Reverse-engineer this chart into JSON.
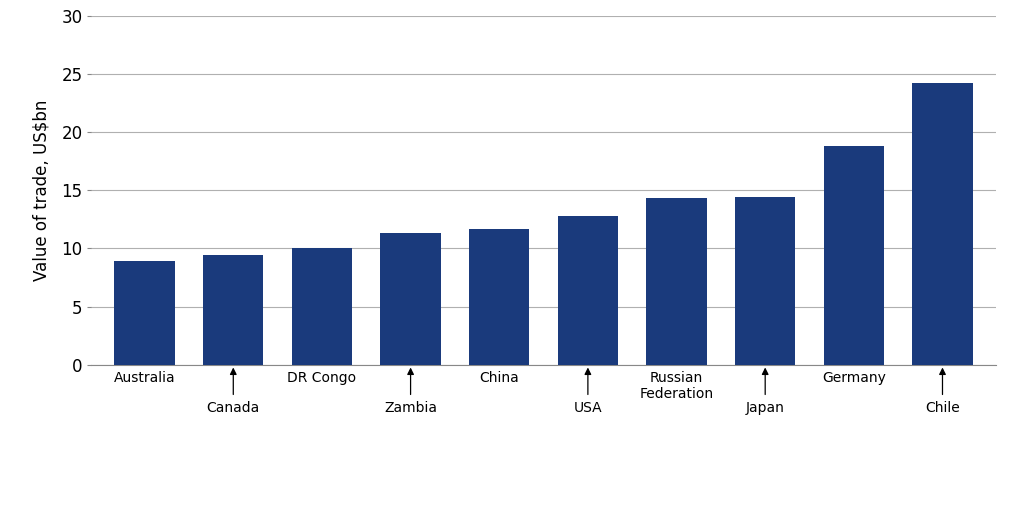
{
  "categories": [
    "Australia",
    "Canada",
    "DR Congo",
    "Zambia",
    "China",
    "USA",
    "Russian\nFederation",
    "Japan",
    "Germany",
    "Chile"
  ],
  "values": [
    8.9,
    9.4,
    10.0,
    11.3,
    11.7,
    12.8,
    14.3,
    14.4,
    18.8,
    24.2
  ],
  "bar_color": "#1a3a7c",
  "ylabel": "Value of trade, US$bn",
  "ylim": [
    0,
    30
  ],
  "yticks": [
    0,
    5,
    10,
    15,
    20,
    25,
    30
  ],
  "background_color": "#ffffff",
  "grid_color": "#b0b0b0",
  "above_labels": [
    "Australia",
    "DR Congo",
    "China",
    "Russian\nFederation",
    "Germany"
  ],
  "below_labels": [
    "Canada",
    "Zambia",
    "USA",
    "Japan",
    "Chile"
  ],
  "above_indices": [
    0,
    2,
    4,
    6,
    8
  ],
  "below_indices": [
    1,
    3,
    5,
    7,
    9
  ]
}
